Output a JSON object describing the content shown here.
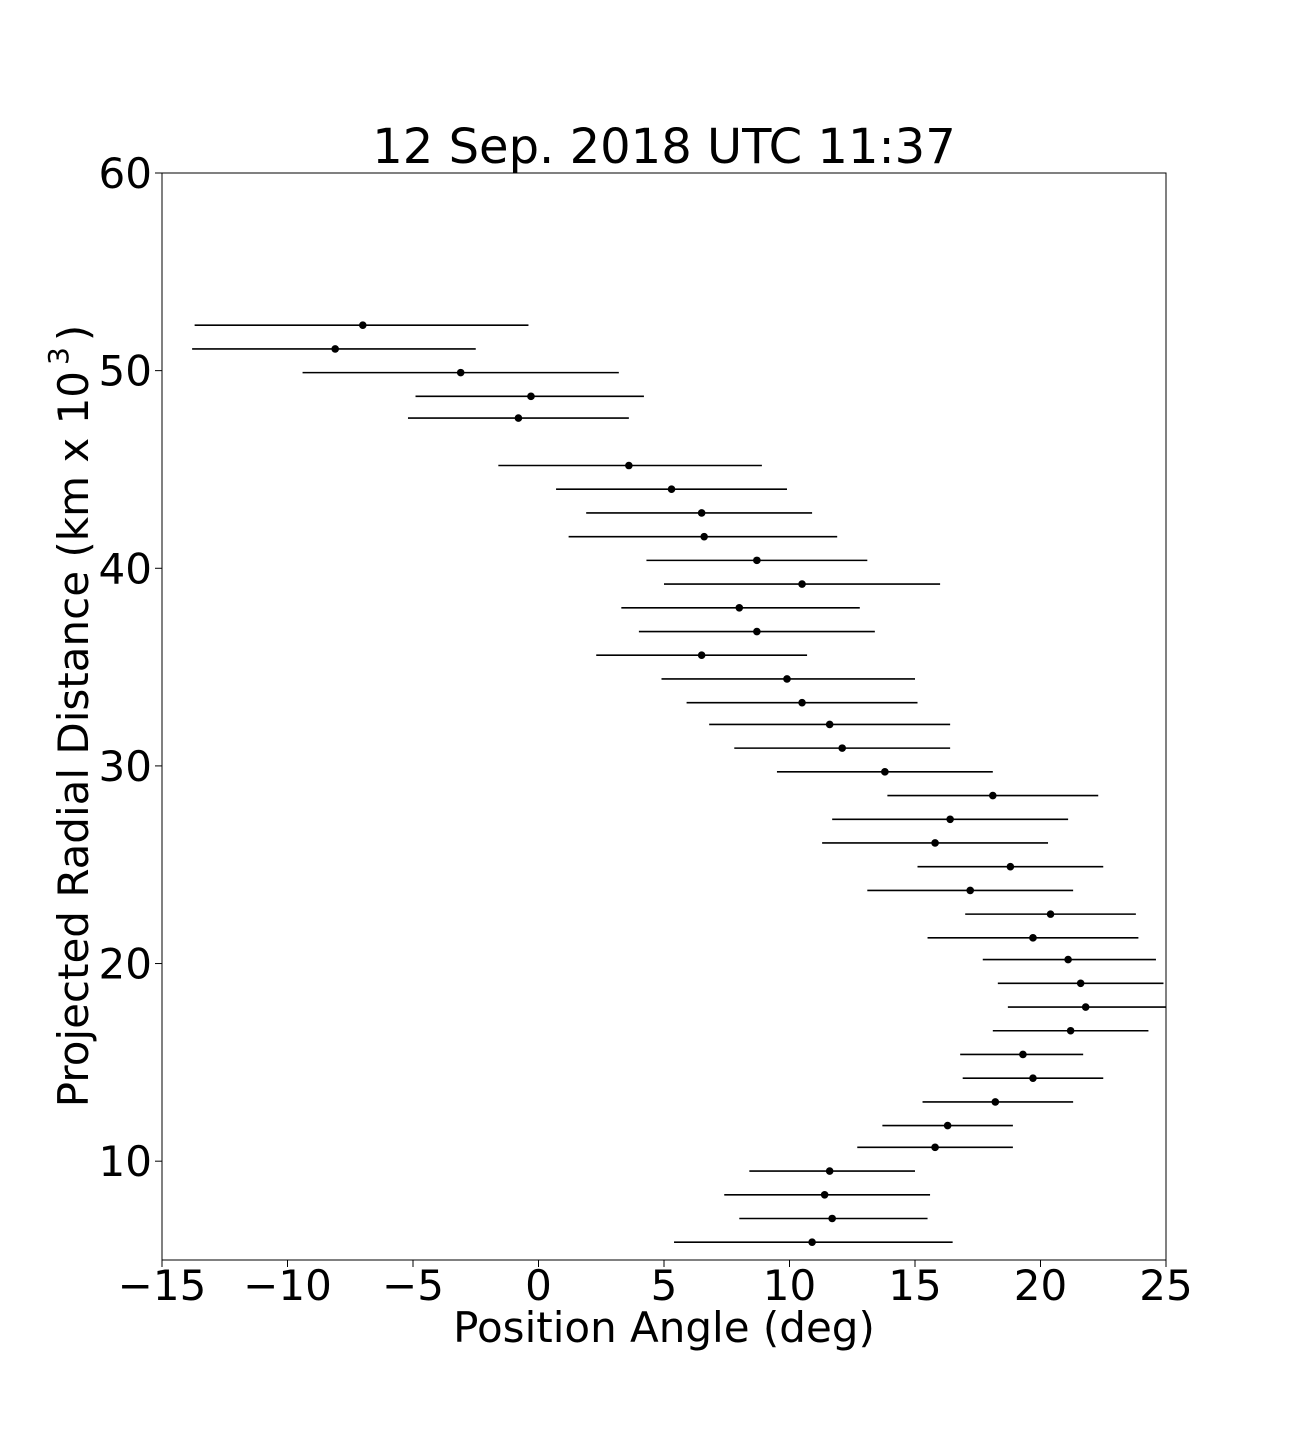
{
  "chart_data": {
    "type": "scatter",
    "title": "12 Sep. 2018 UTC 11:37",
    "xlabel": "Position Angle (deg)",
    "ylabel": "Projected Radial Distance (km x 10",
    "ylabel_exponent": "3",
    "ylabel_close": ")",
    "xlim": [
      -15,
      25
    ],
    "ylim": [
      5,
      60
    ],
    "xticks": [
      -15,
      -10,
      -5,
      0,
      5,
      10,
      15,
      20,
      25
    ],
    "xtick_labels": [
      "−15",
      "−10",
      "−5",
      "0",
      "5",
      "10",
      "15",
      "20",
      "25"
    ],
    "yticks": [
      10,
      20,
      30,
      40,
      50,
      60
    ],
    "ytick_labels": [
      "10",
      "20",
      "30",
      "40",
      "50",
      "60"
    ],
    "grid": false,
    "marker_color": "#000000",
    "errorbar_color": "#000000",
    "points": [
      {
        "x": -7.0,
        "y": 52.3,
        "xerr_low": -13.7,
        "xerr_high": -0.4
      },
      {
        "x": -8.1,
        "y": 51.1,
        "xerr_low": -13.8,
        "xerr_high": -2.5
      },
      {
        "x": -3.1,
        "y": 49.9,
        "xerr_low": -9.4,
        "xerr_high": 3.2
      },
      {
        "x": -0.3,
        "y": 48.7,
        "xerr_low": -4.9,
        "xerr_high": 4.2
      },
      {
        "x": -0.8,
        "y": 47.6,
        "xerr_low": -5.2,
        "xerr_high": 3.6
      },
      {
        "x": 3.6,
        "y": 45.2,
        "xerr_low": -1.6,
        "xerr_high": 8.9
      },
      {
        "x": 5.3,
        "y": 44.0,
        "xerr_low": 0.7,
        "xerr_high": 9.9
      },
      {
        "x": 6.5,
        "y": 42.8,
        "xerr_low": 1.9,
        "xerr_high": 10.9
      },
      {
        "x": 6.6,
        "y": 41.6,
        "xerr_low": 1.2,
        "xerr_high": 11.9
      },
      {
        "x": 8.7,
        "y": 40.4,
        "xerr_low": 4.3,
        "xerr_high": 13.1
      },
      {
        "x": 10.5,
        "y": 39.2,
        "xerr_low": 5.0,
        "xerr_high": 16.0
      },
      {
        "x": 8.0,
        "y": 38.0,
        "xerr_low": 3.3,
        "xerr_high": 12.8
      },
      {
        "x": 8.7,
        "y": 36.8,
        "xerr_low": 4.0,
        "xerr_high": 13.4
      },
      {
        "x": 6.5,
        "y": 35.6,
        "xerr_low": 2.3,
        "xerr_high": 10.7
      },
      {
        "x": 9.9,
        "y": 34.4,
        "xerr_low": 4.9,
        "xerr_high": 15.0
      },
      {
        "x": 10.5,
        "y": 33.2,
        "xerr_low": 5.9,
        "xerr_high": 15.1
      },
      {
        "x": 11.6,
        "y": 32.1,
        "xerr_low": 6.8,
        "xerr_high": 16.4
      },
      {
        "x": 12.1,
        "y": 30.9,
        "xerr_low": 7.8,
        "xerr_high": 16.4
      },
      {
        "x": 13.8,
        "y": 29.7,
        "xerr_low": 9.5,
        "xerr_high": 18.1
      },
      {
        "x": 18.1,
        "y": 28.5,
        "xerr_low": 13.9,
        "xerr_high": 22.3
      },
      {
        "x": 16.4,
        "y": 27.3,
        "xerr_low": 11.7,
        "xerr_high": 21.1
      },
      {
        "x": 15.8,
        "y": 26.1,
        "xerr_low": 11.3,
        "xerr_high": 20.3
      },
      {
        "x": 18.8,
        "y": 24.9,
        "xerr_low": 15.1,
        "xerr_high": 22.5
      },
      {
        "x": 17.2,
        "y": 23.7,
        "xerr_low": 13.1,
        "xerr_high": 21.3
      },
      {
        "x": 20.4,
        "y": 22.5,
        "xerr_low": 17.0,
        "xerr_high": 23.8
      },
      {
        "x": 19.7,
        "y": 21.3,
        "xerr_low": 15.5,
        "xerr_high": 23.9
      },
      {
        "x": 21.1,
        "y": 20.2,
        "xerr_low": 17.7,
        "xerr_high": 24.6
      },
      {
        "x": 21.6,
        "y": 19.0,
        "xerr_low": 18.3,
        "xerr_high": 24.9
      },
      {
        "x": 21.8,
        "y": 17.8,
        "xerr_low": 18.7,
        "xerr_high": 25.0
      },
      {
        "x": 21.2,
        "y": 16.6,
        "xerr_low": 18.1,
        "xerr_high": 24.3
      },
      {
        "x": 19.3,
        "y": 15.4,
        "xerr_low": 16.8,
        "xerr_high": 21.7
      },
      {
        "x": 19.7,
        "y": 14.2,
        "xerr_low": 16.9,
        "xerr_high": 22.5
      },
      {
        "x": 18.2,
        "y": 13.0,
        "xerr_low": 15.3,
        "xerr_high": 21.3
      },
      {
        "x": 16.3,
        "y": 11.8,
        "xerr_low": 13.7,
        "xerr_high": 18.9
      },
      {
        "x": 15.8,
        "y": 10.7,
        "xerr_low": 12.7,
        "xerr_high": 18.9
      },
      {
        "x": 11.6,
        "y": 9.5,
        "xerr_low": 8.4,
        "xerr_high": 15.0
      },
      {
        "x": 11.4,
        "y": 8.3,
        "xerr_low": 7.4,
        "xerr_high": 15.6
      },
      {
        "x": 11.7,
        "y": 7.1,
        "xerr_low": 8.0,
        "xerr_high": 15.5
      },
      {
        "x": 10.9,
        "y": 5.9,
        "xerr_low": 5.4,
        "xerr_high": 16.5
      }
    ]
  }
}
